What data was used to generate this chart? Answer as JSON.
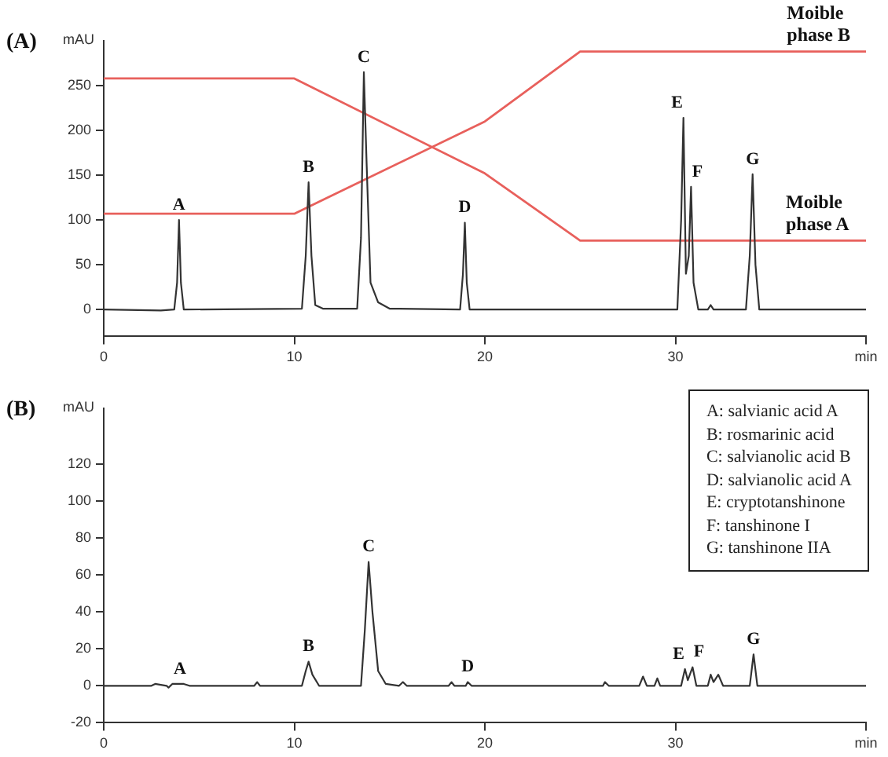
{
  "chart_data": [
    {
      "type": "line",
      "title": "(A)",
      "ylabel": "mAU",
      "xlim": [
        0,
        40
      ],
      "xticks": [
        0,
        10,
        20,
        30,
        {
          "value": 40,
          "label": "min"
        }
      ],
      "ylim": [
        -30,
        300
      ],
      "yticks": [
        0,
        50,
        100,
        150,
        200,
        250
      ],
      "grid": false,
      "legend": false,
      "marker": "none",
      "series": [
        {
          "color": "#333333",
          "x": [
            0,
            3.0,
            3.7,
            3.85,
            3.95,
            4.05,
            4.2,
            10.4,
            10.6,
            10.75,
            10.9,
            11.1,
            11.5,
            13.3,
            13.5,
            13.65,
            13.8,
            14.0,
            14.4,
            15,
            18.7,
            18.85,
            18.95,
            19.05,
            19.2,
            30.1,
            30.3,
            30.42,
            30.55,
            30.7,
            30.82,
            30.95,
            31.2,
            31.7,
            31.85,
            32.0,
            33.7,
            33.9,
            34.05,
            34.2,
            34.4,
            40
          ],
          "values": [
            0,
            -1,
            0,
            30,
            100,
            30,
            0,
            1,
            60,
            142,
            60,
            5,
            1,
            1,
            80,
            265,
            160,
            30,
            8,
            1,
            0,
            40,
            97,
            30,
            0,
            0,
            100,
            214,
            40,
            60,
            137,
            30,
            0,
            0,
            5,
            0,
            0,
            60,
            151,
            50,
            0,
            0
          ]
        },
        {
          "name": "Moible phase A",
          "color": "#e8605c",
          "x": [
            0,
            10,
            20,
            25,
            40
          ],
          "values": [
            258,
            258,
            152,
            77,
            77
          ]
        },
        {
          "name": "Moible phase B",
          "color": "#e8605c",
          "x": [
            0,
            10,
            20,
            25,
            40
          ],
          "values": [
            107,
            107,
            210,
            288,
            288
          ]
        }
      ],
      "annotations": [
        {
          "text": "A",
          "x": 3.95,
          "y": 100
        },
        {
          "text": "B",
          "x": 10.75,
          "y": 142
        },
        {
          "text": "C",
          "x": 13.65,
          "y": 265
        },
        {
          "text": "D",
          "x": 18.95,
          "y": 97
        },
        {
          "text": "E",
          "x": 30.42,
          "y": 214
        },
        {
          "text": "F",
          "x": 30.82,
          "y": 137
        },
        {
          "text": "G",
          "x": 34.05,
          "y": 151
        }
      ]
    },
    {
      "type": "line",
      "title": "(B)",
      "ylabel": "mAU",
      "xlim": [
        0,
        40
      ],
      "xticks": [
        0,
        10,
        20,
        30,
        {
          "value": 40,
          "label": "min"
        }
      ],
      "ylim": [
        -20,
        150
      ],
      "yticks": [
        -20,
        0,
        20,
        40,
        60,
        80,
        100,
        120
      ],
      "grid": false,
      "legend": false,
      "marker": "none",
      "series": [
        {
          "color": "#333333",
          "x": [
            0,
            2.5,
            2.7,
            3.3,
            3.4,
            3.6,
            4.2,
            4.5,
            7.9,
            8.05,
            8.2,
            10.4,
            10.6,
            10.75,
            10.95,
            11.3,
            13.5,
            13.7,
            13.9,
            14.1,
            14.4,
            14.8,
            15.5,
            15.7,
            15.9,
            18.1,
            18.25,
            18.4,
            19,
            19.1,
            19.3,
            26.2,
            26.3,
            26.5,
            28.1,
            28.3,
            28.5,
            28.9,
            29.05,
            29.2,
            30.3,
            30.5,
            30.65,
            30.9,
            31.1,
            31.7,
            31.85,
            32.0,
            32.25,
            32.5,
            33.9,
            34.1,
            34.3,
            40
          ],
          "values": [
            0,
            0,
            1,
            0,
            -1,
            1,
            1,
            0,
            0,
            2,
            0,
            0,
            8,
            13,
            6,
            0,
            0,
            30,
            67,
            40,
            8,
            1,
            0,
            2,
            0,
            0,
            2,
            0,
            0,
            2,
            0,
            0,
            2,
            0,
            0,
            5,
            0,
            0,
            4,
            0,
            0,
            9,
            3,
            10,
            0,
            0,
            6,
            2,
            6,
            0,
            0,
            17,
            0,
            0
          ]
        }
      ],
      "annotations": [
        {
          "text": "A",
          "x": 4,
          "y": 1
        },
        {
          "text": "B",
          "x": 10.75,
          "y": 13
        },
        {
          "text": "C",
          "x": 13.9,
          "y": 67
        },
        {
          "text": "D",
          "x": 19.1,
          "y": 2
        },
        {
          "text": "E",
          "x": 30.5,
          "y": 9
        },
        {
          "text": "F",
          "x": 30.9,
          "y": 10
        },
        {
          "text": "G",
          "x": 34.1,
          "y": 17
        },
        "A: salvianic acid A",
        "B: rosmarinic acid",
        "C: salvianolic acid B",
        "D: salvianolic acid A",
        "E: cryptotanshinone",
        "F: tanshinone I",
        "G: tanshinone IIA"
      ]
    }
  ]
}
